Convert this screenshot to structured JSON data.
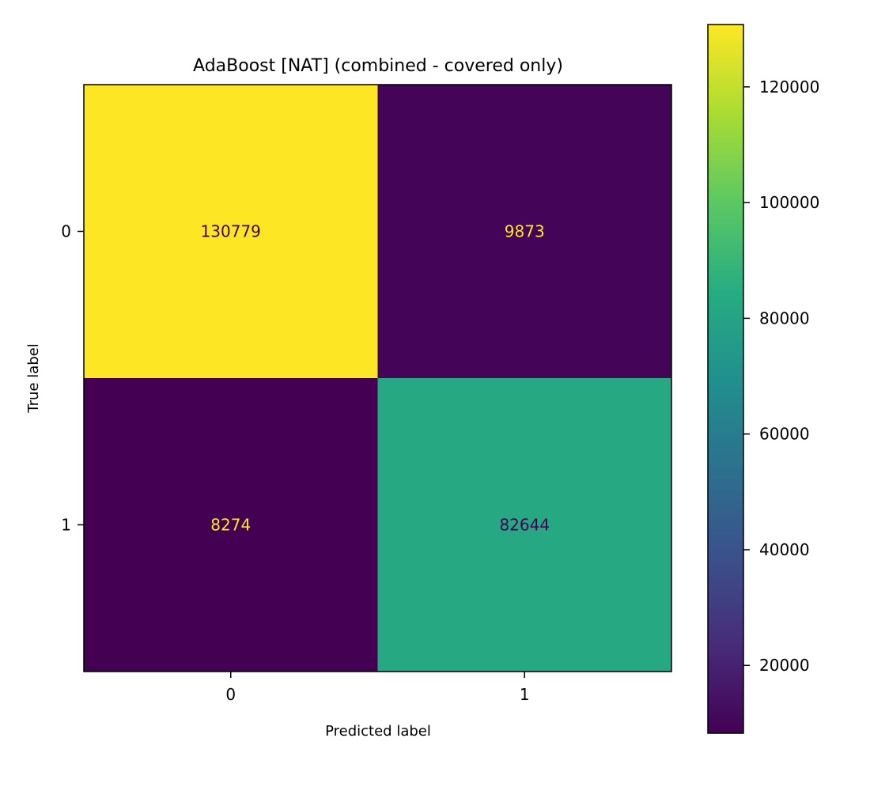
{
  "chart_data": {
    "type": "heatmap",
    "title": "AdaBoost [NAT] (combined - covered only)",
    "xlabel": "Predicted label",
    "ylabel": "True label",
    "x_tick_labels": [
      "0",
      "1"
    ],
    "y_tick_labels": [
      "0",
      "1"
    ],
    "matrix": [
      [
        130779,
        9873
      ],
      [
        8274,
        82644
      ]
    ],
    "colorbar": {
      "colormap": "viridis",
      "vmin": 8274,
      "vmax": 130779,
      "ticks": [
        20000,
        40000,
        60000,
        80000,
        100000,
        120000
      ],
      "tick_labels": [
        "20000",
        "40000",
        "60000",
        "80000",
        "100000",
        "120000"
      ]
    },
    "text_colors": {
      "on_dark": "#fde725",
      "on_light": "#440154"
    }
  }
}
